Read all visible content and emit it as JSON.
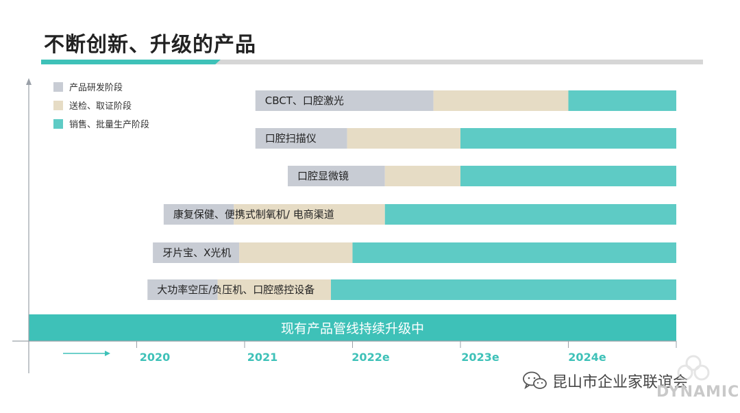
{
  "title": "不断创新、升级的产品",
  "watermark": {
    "text": "昆山市企业家联谊会",
    "logo_text": "DYNAMIC"
  },
  "colors": {
    "rd": "#c8ccd4",
    "test": "#e6dcc5",
    "sales": "#5ecbc5",
    "teal": "#3ec1b8",
    "axis": "#9aa0a8"
  },
  "chart_data": {
    "type": "bar",
    "orientation": "horizontal-stacked-timeline",
    "title": "",
    "xlabel": "",
    "ylabel": "",
    "x_ticks": [
      "2020",
      "2021",
      "2022e",
      "2023e",
      "2024e"
    ],
    "xlim": [
      2019,
      2025
    ],
    "legend": {
      "placement": "top-left",
      "entries": [
        {
          "key": "rd",
          "label": "产品研发阶段"
        },
        {
          "key": "test",
          "label": "送检、取证阶段"
        },
        {
          "key": "sales",
          "label": "销售、批量生产阶段"
        }
      ]
    },
    "rows": [
      {
        "label": "CBCT、口腔激光",
        "rd": [
          2021.1,
          2022.75
        ],
        "test": [
          2022.75,
          2024.0
        ],
        "sales": [
          2024.0,
          2025.0
        ]
      },
      {
        "label": "口腔扫描仪",
        "rd": [
          2021.1,
          2021.95
        ],
        "test": [
          2021.95,
          2023.0
        ],
        "sales": [
          2023.0,
          2025.0
        ]
      },
      {
        "label": "口腔显微镜",
        "rd": [
          2021.4,
          2022.3
        ],
        "test": [
          2022.3,
          2023.0
        ],
        "sales": [
          2023.0,
          2025.0
        ]
      },
      {
        "label": "康复保健、便携式制氧机/ 电商渠道",
        "rd": [
          2020.25,
          2020.9
        ],
        "test": [
          2020.9,
          2022.3
        ],
        "sales": [
          2022.3,
          2025.0
        ]
      },
      {
        "label": "牙片宝、X光机",
        "rd": [
          2020.15,
          2020.95
        ],
        "test": [
          2020.95,
          2022.0
        ],
        "sales": [
          2022.0,
          2025.0
        ]
      },
      {
        "label": "大功率空压/负压机、口腔感控设备",
        "rd": [
          2020.1,
          2020.75
        ],
        "test": [
          2020.75,
          2021.8
        ],
        "sales": [
          2021.8,
          2025.0
        ]
      }
    ],
    "baseline": {
      "label": "现有产品管线持续升级中",
      "range": [
        2019.0,
        2025.0
      ]
    }
  }
}
